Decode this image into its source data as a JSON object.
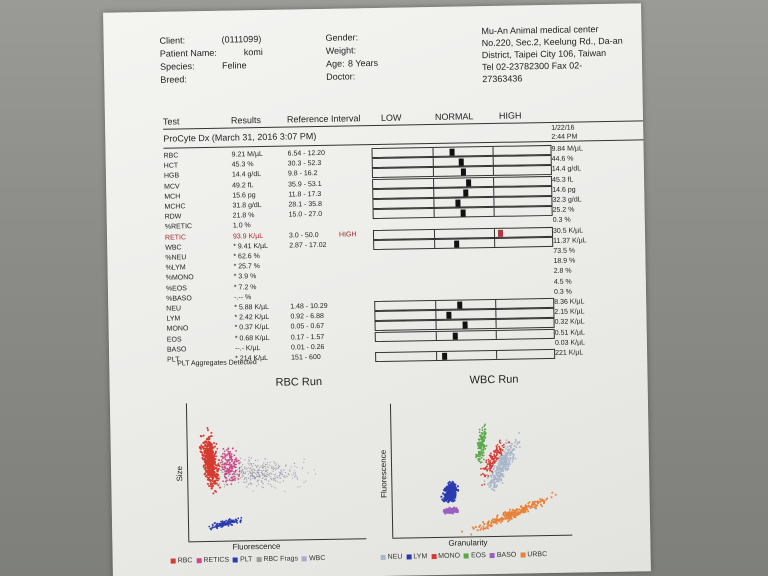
{
  "header": {
    "client_label": "Client:",
    "client_value": "(0111099)",
    "patient_label": "Patient Name:",
    "patient_value": "komi",
    "species_label": "Species:",
    "species_value": "Feline",
    "breed_label": "Breed:",
    "gender_label": "Gender:",
    "weight_label": "Weight:",
    "age_label": "Age:",
    "age_value": "8 Years",
    "doctor_label": "Doctor:",
    "clinic_lines": [
      "Mu-An Animal medical center",
      "No.220, Sec.2, Keelung Rd., Da-an",
      "District, Taipei City 106, Taiwan",
      "Tel 02-23782300  Fax 02-",
      "27363436"
    ]
  },
  "columns": {
    "test": "Test",
    "results": "Results",
    "reference": "Reference Interval",
    "low": "LOW",
    "normal": "NORMAL",
    "high": "HIGH"
  },
  "run": {
    "title": "ProCyte Dx (March 31, 2016 3:07 PM)",
    "prev_date": "1/22/16",
    "prev_time": "2:44 PM"
  },
  "rows": [
    {
      "test": "RBC",
      "result": "9.21 M/µL",
      "ref": "6.54 - 12.20",
      "flag": "",
      "prev": "9.84 M/µL",
      "bar": true,
      "pos": 0.32
    },
    {
      "test": "HCT",
      "result": "45.3 %",
      "ref": "30.3 - 52.3",
      "flag": "",
      "prev": "44.6 %",
      "bar": true,
      "pos": 0.46
    },
    {
      "test": "HGB",
      "result": "14.4 g/dL",
      "ref": "9.8 - 16.2",
      "flag": "",
      "prev": "14.4 g/dL",
      "bar": true,
      "pos": 0.5
    },
    {
      "test": "MCV",
      "result": "49.2 fL",
      "ref": "35.9 - 53.1",
      "flag": "",
      "prev": "45.3 fL",
      "bar": true,
      "pos": 0.58
    },
    {
      "test": "MCH",
      "result": "15.6 pg",
      "ref": "11.8 - 17.3",
      "flag": "",
      "prev": "14.6 pg",
      "bar": true,
      "pos": 0.53
    },
    {
      "test": "MCHC",
      "result": "31.8 g/dL",
      "ref": "28.1 - 35.8",
      "flag": "",
      "prev": "32.3 g/dL",
      "bar": true,
      "pos": 0.4
    },
    {
      "test": "RDW",
      "result": "21.8 %",
      "ref": "15.0 - 27.0",
      "flag": "",
      "prev": "25.2 %",
      "bar": true,
      "pos": 0.48
    },
    {
      "test": "%RETIC",
      "result": "1.0 %",
      "ref": "",
      "flag": "",
      "prev": "0.3 %",
      "bar": false
    },
    {
      "test": "RETIC",
      "result": "93.9 K/µL",
      "ref": "3.0 - 50.0",
      "flag": "HIGH",
      "prev": "30.5 K/µL",
      "bar": true,
      "pos": 1.1,
      "high": true
    },
    {
      "test": "WBC",
      "result": "* 9.41 K/µL",
      "ref": "2.87 - 17.02",
      "flag": "",
      "prev": "11.37 K/µL",
      "bar": true,
      "pos": 0.36
    },
    {
      "test": "%NEU",
      "result": "* 62.6 %",
      "ref": "",
      "flag": "",
      "prev": "73.5 %",
      "bar": false
    },
    {
      "test": "%LYM",
      "result": "* 25.7 %",
      "ref": "",
      "flag": "",
      "prev": "18.9 %",
      "bar": false
    },
    {
      "test": "%MONO",
      "result": "* 3.9 %",
      "ref": "",
      "flag": "",
      "prev": "2.8 %",
      "bar": false
    },
    {
      "test": "%EOS",
      "result": "* 7.2 %",
      "ref": "",
      "flag": "",
      "prev": "4.5 %",
      "bar": false
    },
    {
      "test": "%BASO",
      "result": "-.-- %",
      "ref": "",
      "flag": "",
      "prev": "0.3 %",
      "bar": false
    },
    {
      "test": "NEU",
      "result": "* 5.88 K/µL",
      "ref": "1.48 - 10.29",
      "flag": "",
      "prev": "8.36 K/µL",
      "bar": true,
      "pos": 0.4
    },
    {
      "test": "LYM",
      "result": "* 2.42 K/µL",
      "ref": "0.92 - 6.88",
      "flag": "",
      "prev": "2.15 K/µL",
      "bar": true,
      "pos": 0.22
    },
    {
      "test": "MONO",
      "result": "* 0.37 K/µL",
      "ref": "0.05 - 0.67",
      "flag": "",
      "prev": "0.32 K/µL",
      "bar": true,
      "pos": 0.48
    },
    {
      "test": "EOS",
      "result": "* 0.68 K/µL",
      "ref": "0.17 - 1.57",
      "flag": "",
      "prev": "0.51 K/µL",
      "bar": true,
      "pos": 0.32
    },
    {
      "test": "BASO",
      "result": "--.- K/µL",
      "ref": "0.01 - 0.26",
      "flag": "",
      "prev": "0.03 K/µL",
      "bar": false
    },
    {
      "test": "PLT",
      "result": "* 214 K/µL",
      "ref": "151 - 600",
      "flag": "",
      "prev": "221 K/µL",
      "bar": true,
      "pos": 0.13
    }
  ],
  "note": "PLT Aggregates Detected",
  "rbc_plot": {
    "title": "RBC Run",
    "xlabel": "Fluorescence",
    "ylabel": "Size",
    "legend": [
      {
        "name": "RBC",
        "color": "#d63a30"
      },
      {
        "name": "RETICS",
        "color": "#c94a86"
      },
      {
        "name": "PLT",
        "color": "#2a3bb0"
      },
      {
        "name": "RBC Frags",
        "color": "#9a9aa0"
      },
      {
        "name": "WBC",
        "color": "#aaaacc"
      }
    ]
  },
  "wbc_plot": {
    "title": "WBC Run",
    "xlabel": "Granularity",
    "ylabel": "Fluorescence",
    "legend": [
      {
        "name": "NEU",
        "color": "#a9b6c9"
      },
      {
        "name": "LYM",
        "color": "#2a3bb0"
      },
      {
        "name": "MONO",
        "color": "#d63a30"
      },
      {
        "name": "EOS",
        "color": "#5aa84a"
      },
      {
        "name": "BASO",
        "color": "#9a60c0"
      },
      {
        "name": "URBC",
        "color": "#e8823a"
      }
    ]
  }
}
